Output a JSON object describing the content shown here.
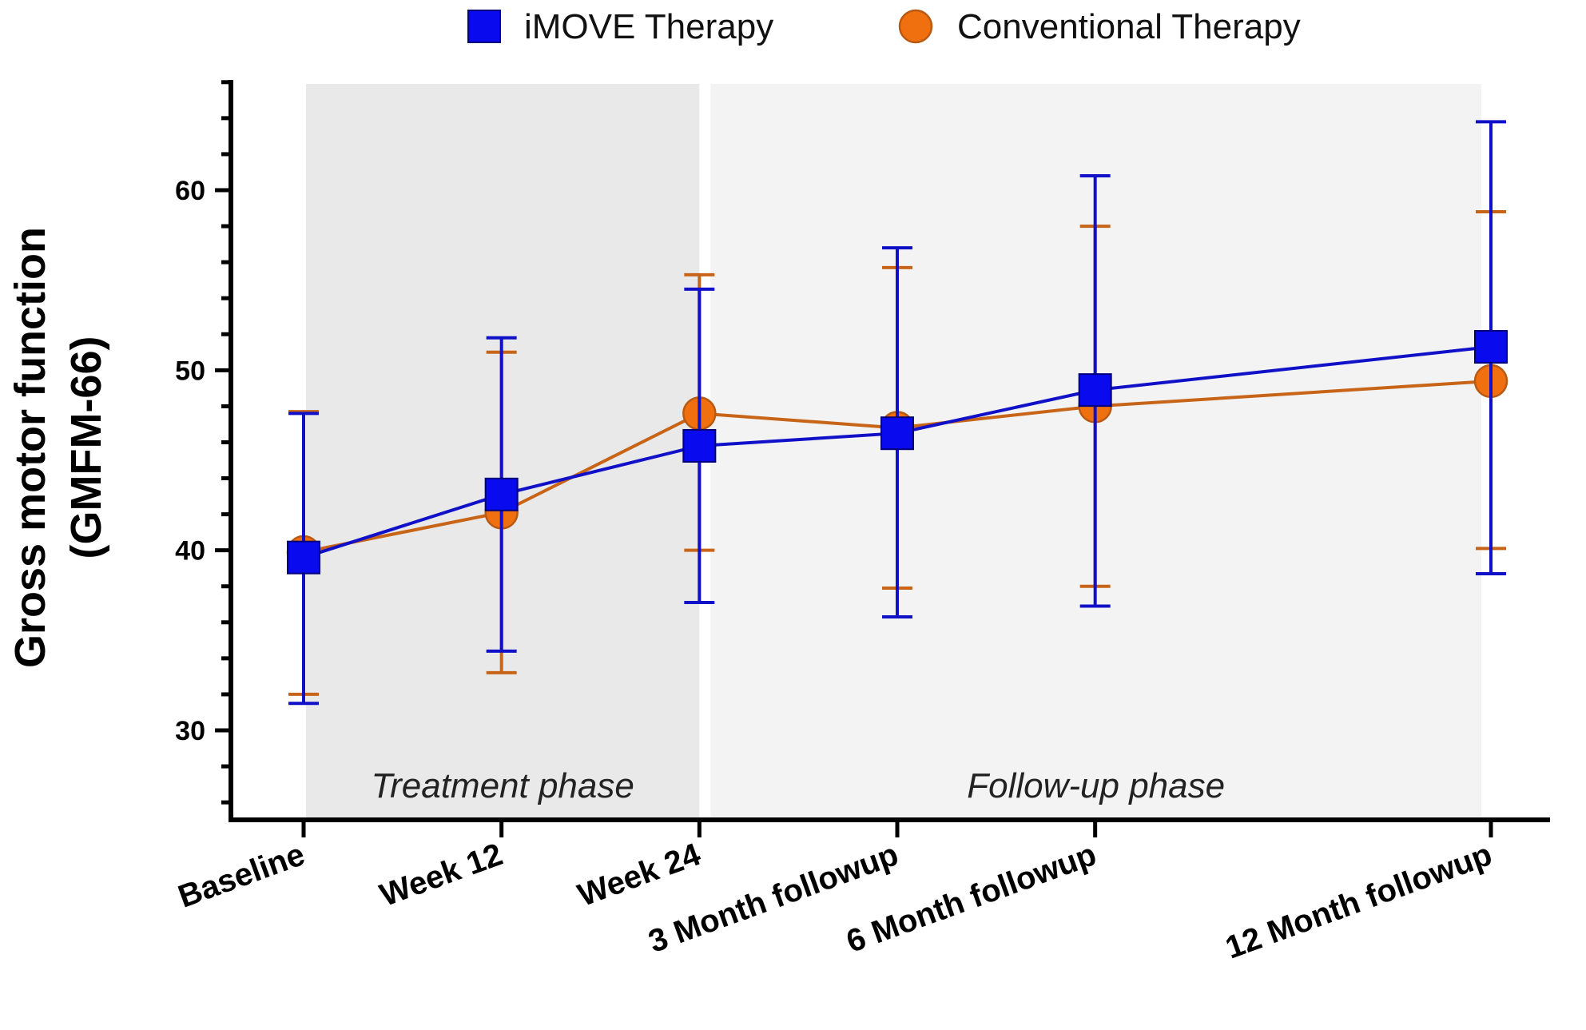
{
  "chart_data": {
    "type": "line",
    "title": "",
    "xlabel": "",
    "ylabel_lines": [
      "Gross motor function",
      "(GMFM-66)"
    ],
    "ylim": [
      25,
      66
    ],
    "yticks": [
      30,
      40,
      50,
      60
    ],
    "categories": [
      "Baseline",
      "Week 12",
      "Week 24",
      "3 Month followup",
      "6 Month followup",
      "12 Month followup"
    ],
    "x_positions": [
      0,
      1,
      2,
      3,
      4,
      6
    ],
    "phases": [
      {
        "label": "Treatment phase",
        "from": 0,
        "to": 2,
        "color": "#e9e9e9"
      },
      {
        "label": "Follow-up phase",
        "from": 2,
        "to": 6,
        "color": "#f3f3f3"
      }
    ],
    "series": [
      {
        "name": "Conventional Therapy",
        "marker": "circle",
        "color": "#f07010",
        "line_color": "#c86418",
        "values": [
          39.9,
          42.1,
          47.6,
          46.8,
          48.0,
          49.4
        ],
        "err_low": [
          32.0,
          33.2,
          40.0,
          37.9,
          38.0,
          40.1
        ],
        "err_high": [
          47.7,
          51.0,
          55.3,
          55.7,
          58.0,
          58.8
        ]
      },
      {
        "name": "iMOVE Therapy",
        "marker": "square",
        "color": "#0a0aee",
        "line_color": "#1010c8",
        "values": [
          39.6,
          43.1,
          45.8,
          46.5,
          48.9,
          51.3
        ],
        "err_low": [
          31.5,
          34.4,
          37.1,
          36.3,
          36.9,
          38.7
        ],
        "err_high": [
          47.6,
          51.8,
          54.5,
          56.8,
          60.8,
          63.8
        ]
      }
    ],
    "legend": {
      "position": "top-center",
      "entries": [
        {
          "label": "iMOVE Therapy",
          "marker": "square",
          "color": "#0a0aee"
        },
        {
          "label": "Conventional Therapy",
          "marker": "circle",
          "color": "#f07010"
        }
      ]
    }
  }
}
